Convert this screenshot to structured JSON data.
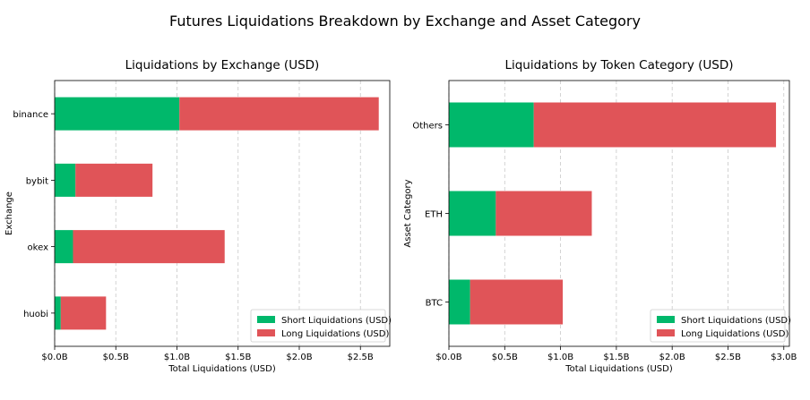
{
  "suptitle": "Futures Liquidations Breakdown by Exchange and Asset Category",
  "colors": {
    "short": "#00b86b",
    "long": "#e05458",
    "grid": "#c8c8c8"
  },
  "chart_data": [
    {
      "type": "bar",
      "orientation": "horizontal",
      "stacked": true,
      "title": "Liquidations by Exchange (USD)",
      "xlabel": "Total Liquidations (USD)",
      "ylabel": "Exchange",
      "categories": [
        "binance",
        "bybit",
        "okex",
        "huobi"
      ],
      "xlim": [
        0,
        2.74
      ],
      "xticks": [
        "$0.0B",
        "$0.5B",
        "$1.0B",
        "$1.5B",
        "$2.0B",
        "$2.5B"
      ],
      "xtick_values": [
        0,
        0.5,
        1.0,
        1.5,
        2.0,
        2.5
      ],
      "grid": "x dashed",
      "legend_position": "lower-right",
      "series": [
        {
          "name": "Short Liquidations (USD)",
          "values": [
            1.02,
            0.17,
            0.15,
            0.05
          ]
        },
        {
          "name": "Long Liquidations (USD)",
          "values": [
            1.63,
            0.63,
            1.24,
            0.37
          ]
        }
      ]
    },
    {
      "type": "bar",
      "orientation": "horizontal",
      "stacked": true,
      "title": "Liquidations by Token Category (USD)",
      "xlabel": "Total Liquidations (USD)",
      "ylabel": "Asset Category",
      "categories": [
        "Others",
        "ETH",
        "BTC"
      ],
      "xlim": [
        0,
        3.05
      ],
      "xticks": [
        "$0.0B",
        "$0.5B",
        "$1.0B",
        "$1.5B",
        "$2.0B",
        "$2.5B",
        "$3.0B"
      ],
      "xtick_values": [
        0,
        0.5,
        1.0,
        1.5,
        2.0,
        2.5,
        3.0
      ],
      "grid": "x dashed",
      "legend_position": "lower-right",
      "series": [
        {
          "name": "Short Liquidations (USD)",
          "values": [
            0.76,
            0.42,
            0.19
          ]
        },
        {
          "name": "Long Liquidations (USD)",
          "values": [
            2.17,
            0.86,
            0.83
          ]
        }
      ]
    }
  ]
}
